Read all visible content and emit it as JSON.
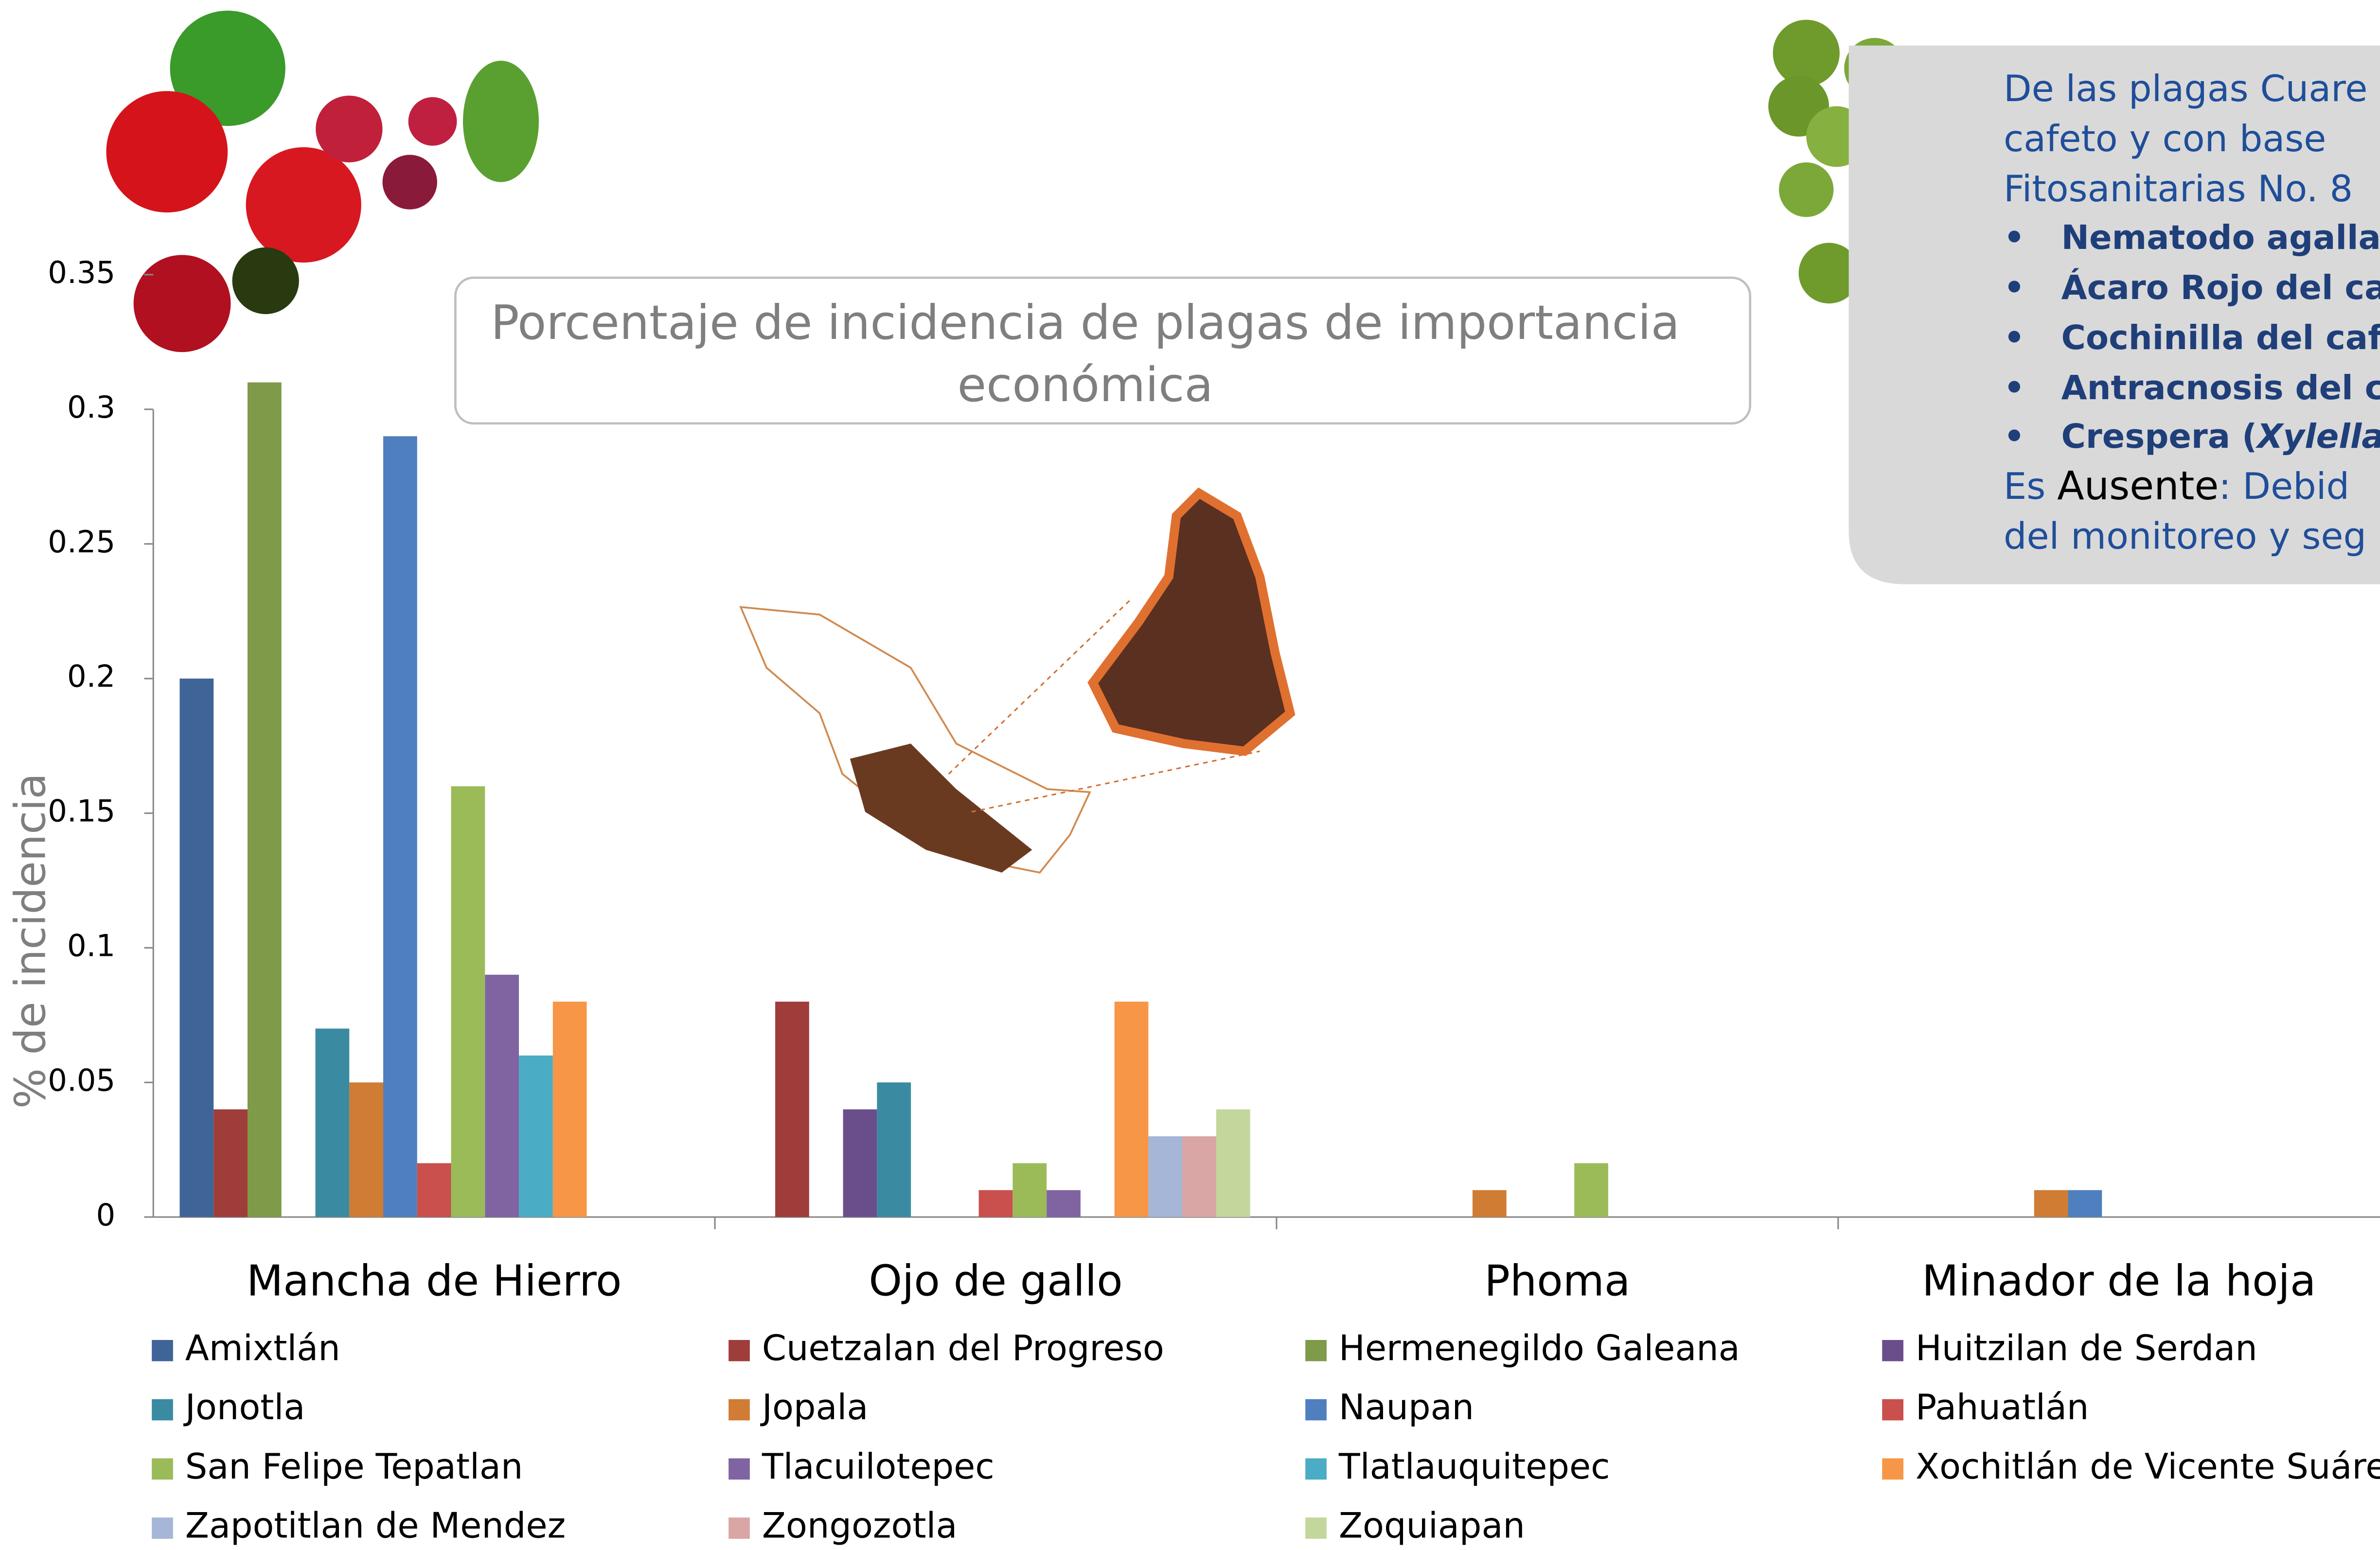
{
  "chart_data": {
    "type": "bar",
    "title": "Porcentaje de incidencia de plagas de importancia económica",
    "y_label": "% de incidencia",
    "categories": [
      "Mancha de Hierro",
      "Ojo de gallo",
      "Phoma",
      "Minador de la hoja"
    ],
    "series": [
      {
        "name": "Amixtlán",
        "color": "#3f6498",
        "values": [
          0.2,
          0,
          0,
          0
        ]
      },
      {
        "name": "Cuetzalan del Progreso",
        "color": "#9e3d3a",
        "values": [
          0.04,
          0.08,
          0,
          0
        ]
      },
      {
        "name": "Hermenegildo Galeana",
        "color": "#7f9a48",
        "values": [
          0.31,
          0,
          0,
          0
        ]
      },
      {
        "name": "Huitzilan de Serdan",
        "color": "#6a4e8c",
        "values": [
          0,
          0.04,
          0,
          0
        ]
      },
      {
        "name": "Jonotla",
        "color": "#3a8ba2",
        "values": [
          0.07,
          0.05,
          0,
          0
        ]
      },
      {
        "name": "Jopala",
        "color": "#d07c34",
        "values": [
          0.05,
          0,
          0.01,
          0.01
        ]
      },
      {
        "name": "Naupan",
        "color": "#4f7fbf",
        "values": [
          0.29,
          0,
          0,
          0.01
        ]
      },
      {
        "name": "Pahuatlán",
        "color": "#c9504c",
        "values": [
          0.02,
          0.01,
          0,
          0
        ]
      },
      {
        "name": "San Felipe Tepatlan",
        "color": "#9bbb59",
        "values": [
          0.16,
          0.02,
          0.02,
          0
        ]
      },
      {
        "name": "Tlacuilotepec",
        "color": "#8064a2",
        "values": [
          0.09,
          0.01,
          0,
          0
        ]
      },
      {
        "name": "Tlatlauquitepec",
        "color": "#4bacc6",
        "values": [
          0.06,
          0,
          0,
          0
        ]
      },
      {
        "name": "Xochitlán de Vicente Suárez",
        "color": "#f79646",
        "values": [
          0.08,
          0.08,
          0,
          0
        ]
      },
      {
        "name": "Zapotitlan de Mendez",
        "color": "#a5b6d6",
        "values": [
          0,
          0.03,
          0,
          0
        ]
      },
      {
        "name": "Zongozotla",
        "color": "#d9a5a5",
        "values": [
          0,
          0.03,
          0,
          0
        ]
      },
      {
        "name": "Zoquiapan",
        "color": "#c3d69b",
        "values": [
          0,
          0.04,
          0,
          0
        ]
      }
    ],
    "ylim": [
      0,
      0.35
    ],
    "yticks": [
      0,
      0.05,
      0.1,
      0.15,
      0.2,
      0.25,
      0.3,
      0.35
    ]
  },
  "info_panel": {
    "lines": [
      "De las plagas Cuare",
      "cafeto y con base",
      "Fitosanitarias No. 8"
    ],
    "bullets": [
      "Nematodo agallado",
      "Ácaro Rojo del cafe",
      "Cochinilla del cafet",
      "Antracnosis del caf"
    ],
    "last_bullet": [
      "Crespera (",
      "Xylella fa"
    ],
    "footer": [
      "Es ",
      "Ausente",
      ": Debid"
    ],
    "footer_line2": "del monitoreo y seg"
  }
}
